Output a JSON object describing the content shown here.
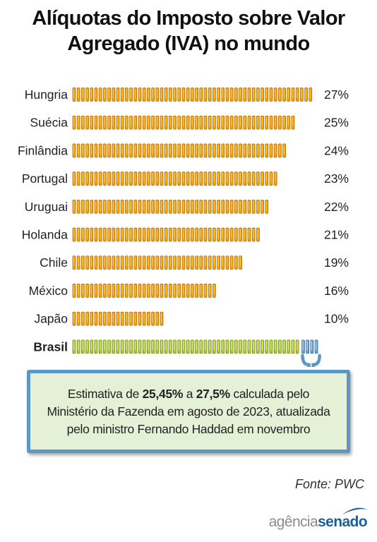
{
  "chart_data": {
    "type": "bar",
    "orientation": "horizontal",
    "title": "Alíquotas do Imposto sobre Valor Agregado (IVA) no mundo",
    "title_lines": [
      "Alíquotas do Imposto sobre Valor",
      "Agregado (IVA) no mundo"
    ],
    "categories": [
      "Hungria",
      "Suécia",
      "Finlândia",
      "Portugal",
      "Uruguai",
      "Holanda",
      "Chile",
      "México",
      "Japão",
      "Brasil"
    ],
    "values": [
      27,
      25,
      24,
      23,
      22,
      21,
      19,
      16,
      10,
      null
    ],
    "value_labels": [
      "27%",
      "25%",
      "24%",
      "23%",
      "22%",
      "21%",
      "19%",
      "16%",
      "10%",
      ""
    ],
    "brasil_estimate_range": [
      25.45,
      27.5
    ],
    "colors": {
      "bar": "#f0a30a",
      "bar_dark": "#b3640a",
      "bar_light": "#ffd04a",
      "brasil_green": "#7fb83a",
      "brasil_yellow": "#e0d32a",
      "brasil_range": "#6a9ccc",
      "callout_border": "#5f97c4",
      "callout_fill": "#e4f1d7"
    },
    "grid": false,
    "legend": "none"
  },
  "callout": {
    "p1": "Estimativa de ",
    "v1": "25,45%",
    "p2": " a ",
    "v2": "27,5%",
    "p3": " calculada pelo",
    "line2": "Ministério da Fazenda em agosto de 2023, atualizada",
    "line3": "pelo ministro Fernando Haddad em novembro"
  },
  "source": "Fonte: PWC",
  "logo": {
    "part1": "agência",
    "part2": "senado"
  }
}
